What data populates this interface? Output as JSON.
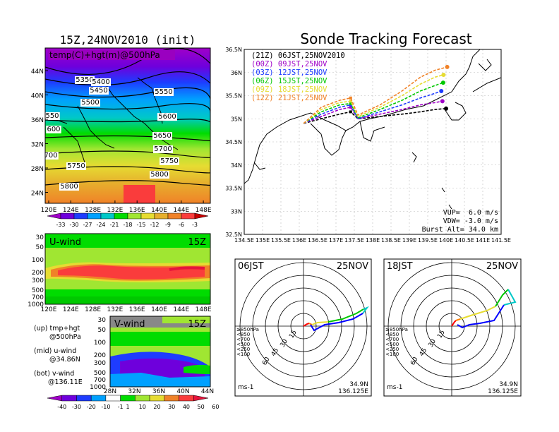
{
  "upper_map": {
    "title": "15Z,24NOV2010 (init)",
    "label": "temp(C)+hgt(m)@500hPa",
    "lat_ticks": [
      "44N",
      "40N",
      "36N",
      "32N",
      "28N",
      "24N"
    ],
    "lon_ticks": [
      "120E",
      "124E",
      "128E",
      "132E",
      "136E",
      "140E",
      "144E",
      "148E"
    ],
    "contour_labels": [
      "5350",
      "5400",
      "5450",
      "5500",
      "5550",
      "5600",
      "550",
      "600",
      "5650",
      "5700",
      "700",
      "5750",
      "5750",
      "5800",
      "5800"
    ],
    "colorbar_labels": [
      "-33",
      "-30",
      "-27",
      "-24",
      "-21",
      "-18",
      "-15",
      "-12",
      "-9",
      "-6",
      "-3"
    ]
  },
  "uwind": {
    "label": "U-wind",
    "time": "15Z",
    "y_ticks": [
      "30",
      "50",
      "100",
      "200",
      "300",
      "500",
      "700",
      "1000"
    ],
    "x_ticks": [
      "120E",
      "124E",
      "128E",
      "132E",
      "136E",
      "140E",
      "144E",
      "148E"
    ]
  },
  "vwind": {
    "label": "V-wind",
    "time": "15Z",
    "y_ticks": [
      "30",
      "50",
      "100",
      "200",
      "300",
      "500",
      "700",
      "1000"
    ],
    "x_ticks": [
      "28N",
      "32N",
      "36N",
      "40N",
      "44N"
    ]
  },
  "legend_notes": [
    "(up) tmp+hgt",
    "@500hPa",
    "(mid) u-wind",
    "@34.86N",
    "(bot) v-wind",
    "@136.11E"
  ],
  "wind_colorbar_labels": [
    "-40",
    "-30",
    "-20",
    "-10",
    "-1",
    "1",
    "10",
    "20",
    "30",
    "40",
    "50",
    "60"
  ],
  "tracking": {
    "title": "Sonde Tracking Forecast",
    "legend": [
      {
        "text": "(21Z) 06JST,25NOV2010",
        "color": "#000000"
      },
      {
        "text": "(00Z) 09JST,25NOV",
        "color": "#a000c8"
      },
      {
        "text": "(03Z) 12JST,25NOV",
        "color": "#1e3cff"
      },
      {
        "text": "(06Z) 15JST,25NOV",
        "color": "#00c800"
      },
      {
        "text": "(09Z) 18JST,25NOV",
        "color": "#e6dc32"
      },
      {
        "text": "(12Z) 21JST,25NOV",
        "color": "#f08228"
      }
    ],
    "lat_ticks": [
      "36.5N",
      "36N",
      "35.5N",
      "35N",
      "34.5N",
      "34N",
      "33.5N",
      "33N",
      "32.5N"
    ],
    "lon_ticks": [
      "134.5E",
      "135E",
      "135.5E",
      "136E",
      "136.5E",
      "137E",
      "137.5E",
      "138E",
      "138.5E",
      "139E",
      "139.5E",
      "140E",
      "140.5E",
      "141E",
      "141.5E"
    ],
    "params": [
      "VUP=  6.0 m/s",
      "VDW= -3.0 m/s",
      "Burst Alt= 34.0 km"
    ]
  },
  "hodo_left": {
    "time": "06JST",
    "date": "25NOV",
    "lat": "34.9N",
    "lon": "136.125E",
    "unit": "ms-1"
  },
  "hodo_right": {
    "time": "18JST",
    "date": "25NOV",
    "lat": "34.9N",
    "lon": "136.125E",
    "unit": "ms-1"
  },
  "hodo_rings": [
    "15",
    "30",
    "45",
    "60"
  ],
  "hodo_levels": [
    {
      "text": "≥850hPa",
      "color": "#ff0000"
    },
    {
      "text": "<850",
      "color": "#ff8000"
    },
    {
      "text": "<700",
      "color": "#e6dc32"
    },
    {
      "text": "<500",
      "color": "#00c800"
    },
    {
      "text": "<250",
      "color": "#00c8c8"
    },
    {
      "text": "<100",
      "color": "#0000ff"
    }
  ],
  "colors": {
    "temp_scale": [
      "#a000c8",
      "#6e00dc",
      "#1e3cff",
      "#00a0ff",
      "#00c8c8",
      "#00dc00",
      "#a0e632",
      "#e6dc32",
      "#e6af2d",
      "#f08228",
      "#fa3c3c",
      "#c80000"
    ],
    "wind_scale": [
      "#a000c8",
      "#6e00dc",
      "#1e3cff",
      "#00a0ff",
      "#ffffff",
      "#00dc00",
      "#a0e632",
      "#e6dc32",
      "#f08228",
      "#fa3c3c",
      "#e6143c"
    ]
  },
  "chart_data": [
    {
      "type": "line",
      "title": "Sonde Tracking Forecast",
      "xlabel": "",
      "ylabel": "",
      "xlim": [
        134.5,
        141.5
      ],
      "ylim": [
        32.5,
        36.5
      ],
      "grid": true,
      "legend": "top-left",
      "series": [
        {
          "name": "(21Z) 06JST,25NOV2010",
          "x": [
            136.12,
            136.6,
            137.1,
            137.4,
            137.6,
            138.2,
            138.8,
            139.3,
            139.7,
            140.0
          ],
          "y": [
            34.9,
            35.0,
            35.1,
            35.15,
            35.0,
            35.05,
            35.1,
            35.15,
            35.2,
            35.22
          ]
        },
        {
          "name": "(00Z) 09JST,25NOV",
          "x": [
            136.12,
            136.6,
            137.1,
            137.4,
            137.6,
            138.2,
            138.8,
            139.3,
            139.7,
            139.9
          ],
          "y": [
            34.9,
            35.05,
            35.2,
            35.25,
            35.0,
            35.1,
            35.2,
            35.3,
            35.35,
            35.38
          ]
        },
        {
          "name": "(03Z) 12JST,25NOV",
          "x": [
            136.12,
            136.6,
            137.1,
            137.4,
            137.6,
            138.2,
            138.8,
            139.3,
            139.7,
            139.87
          ],
          "y": [
            34.9,
            35.1,
            35.25,
            35.3,
            35.0,
            35.15,
            35.3,
            35.45,
            35.55,
            35.6
          ]
        },
        {
          "name": "(06Z) 15JST,25NOV",
          "x": [
            136.12,
            136.6,
            137.1,
            137.4,
            137.6,
            138.2,
            138.8,
            139.3,
            139.7,
            139.92
          ],
          "y": [
            34.9,
            35.15,
            35.3,
            35.33,
            35.02,
            35.2,
            35.4,
            35.6,
            35.72,
            35.78
          ]
        },
        {
          "name": "(09Z) 18JST,25NOV",
          "x": [
            136.12,
            136.6,
            137.1,
            137.4,
            137.6,
            138.2,
            138.8,
            139.3,
            139.7,
            139.93
          ],
          "y": [
            34.9,
            35.2,
            35.35,
            35.38,
            35.05,
            35.25,
            35.5,
            35.75,
            35.9,
            35.95
          ]
        },
        {
          "name": "(12Z) 21JST,25NOV",
          "x": [
            136.12,
            136.6,
            137.1,
            137.4,
            137.6,
            138.2,
            138.8,
            139.3,
            139.7,
            140.03
          ],
          "y": [
            34.9,
            35.25,
            35.4,
            35.45,
            35.08,
            35.3,
            35.6,
            35.9,
            36.05,
            36.12
          ]
        }
      ]
    },
    {
      "type": "heatmap",
      "title": "15Z,24NOV2010 (init)",
      "xlabel": "",
      "ylabel": "",
      "xlim": [
        120,
        150
      ],
      "ylim": [
        22,
        47
      ],
      "colorbar": [
        -33,
        -30,
        -27,
        -24,
        -21,
        -18,
        -15,
        -12,
        -9,
        -6,
        -3
      ]
    }
  ]
}
